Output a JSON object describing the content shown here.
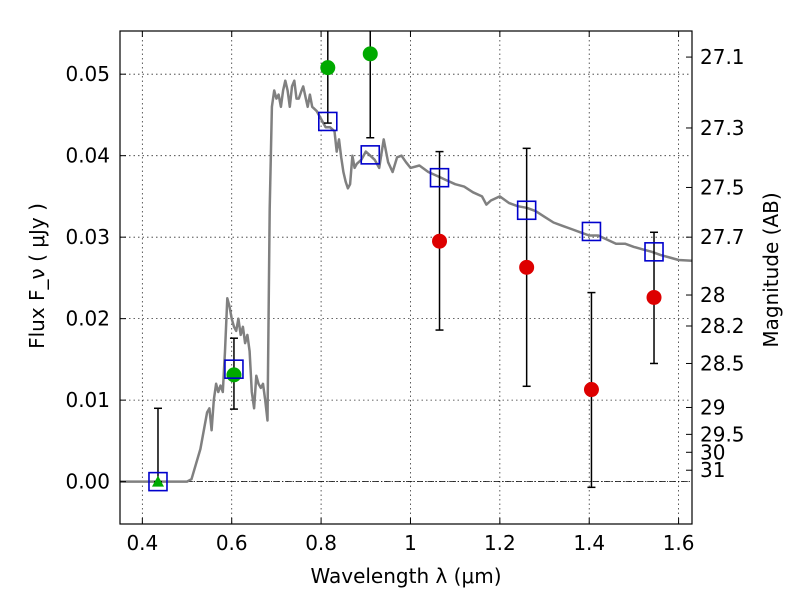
{
  "chart_data": {
    "type": "scatter",
    "xlabel": "Wavelength  λ (μm)",
    "ylabel_left": "Flux  F_ν  ( μJy )",
    "ylabel_right": "Magnitude (AB)",
    "xlim": [
      0.35,
      1.63
    ],
    "ylim": [
      -0.0052,
      0.0553
    ],
    "x_ticks": [
      0.4,
      0.6,
      0.8,
      1.0,
      1.2,
      1.4,
      1.6
    ],
    "x_tick_labels": [
      "0.4",
      "0.6",
      "0.8",
      "1",
      "1.2",
      "1.4",
      "1.6"
    ],
    "y_ticks": [
      0.0,
      0.01,
      0.02,
      0.03,
      0.04,
      0.05
    ],
    "y_tick_labels": [
      "0.00",
      "0.01",
      "0.02",
      "0.03",
      "0.04",
      "0.05"
    ],
    "right_ticks": [
      {
        "label": "27.1",
        "flux": 0.0521
      },
      {
        "label": "27.3",
        "flux": 0.0434
      },
      {
        "label": "27.5",
        "flux": 0.0361
      },
      {
        "label": "27.7",
        "flux": 0.03
      },
      {
        "label": "28",
        "flux": 0.0229
      },
      {
        "label": "28.2",
        "flux": 0.0191
      },
      {
        "label": "28.5",
        "flux": 0.0145
      },
      {
        "label": "29",
        "flux": 0.0091
      },
      {
        "label": "29.5",
        "flux": 0.0058
      },
      {
        "label": "30",
        "flux": 0.0036
      },
      {
        "label": "31",
        "flux": 0.0014
      }
    ],
    "grid": true,
    "model_sed": {
      "color": "#808080",
      "points": [
        [
          0.35,
          0.0
        ],
        [
          0.5,
          0.0
        ],
        [
          0.51,
          0.0003
        ],
        [
          0.53,
          0.004
        ],
        [
          0.545,
          0.0085
        ],
        [
          0.55,
          0.009
        ],
        [
          0.555,
          0.0063
        ],
        [
          0.56,
          0.01
        ],
        [
          0.565,
          0.012
        ],
        [
          0.57,
          0.011
        ],
        [
          0.575,
          0.0118
        ],
        [
          0.58,
          0.011
        ],
        [
          0.585,
          0.016
        ],
        [
          0.59,
          0.0225
        ],
        [
          0.595,
          0.0215
        ],
        [
          0.6,
          0.02
        ],
        [
          0.605,
          0.019
        ],
        [
          0.61,
          0.0185
        ],
        [
          0.615,
          0.02
        ],
        [
          0.62,
          0.018
        ],
        [
          0.625,
          0.019
        ],
        [
          0.63,
          0.017
        ],
        [
          0.635,
          0.018
        ],
        [
          0.64,
          0.016
        ],
        [
          0.645,
          0.011
        ],
        [
          0.65,
          0.009
        ],
        [
          0.655,
          0.013
        ],
        [
          0.66,
          0.012
        ],
        [
          0.665,
          0.0115
        ],
        [
          0.67,
          0.012
        ],
        [
          0.675,
          0.01
        ],
        [
          0.68,
          0.0075
        ],
        [
          0.685,
          0.0335
        ],
        [
          0.69,
          0.046
        ],
        [
          0.695,
          0.048
        ],
        [
          0.7,
          0.047
        ],
        [
          0.705,
          0.0475
        ],
        [
          0.71,
          0.046
        ],
        [
          0.715,
          0.048
        ],
        [
          0.72,
          0.0492
        ],
        [
          0.725,
          0.048
        ],
        [
          0.73,
          0.046
        ],
        [
          0.735,
          0.0485
        ],
        [
          0.74,
          0.0492
        ],
        [
          0.745,
          0.047
        ],
        [
          0.75,
          0.047
        ],
        [
          0.755,
          0.0478
        ],
        [
          0.76,
          0.0485
        ],
        [
          0.765,
          0.0472
        ],
        [
          0.77,
          0.046
        ],
        [
          0.775,
          0.0475
        ],
        [
          0.78,
          0.046
        ],
        [
          0.79,
          0.0455
        ],
        [
          0.8,
          0.0445
        ],
        [
          0.81,
          0.0435
        ],
        [
          0.82,
          0.0435
        ],
        [
          0.83,
          0.043
        ],
        [
          0.835,
          0.0405
        ],
        [
          0.84,
          0.042
        ],
        [
          0.845,
          0.0398
        ],
        [
          0.85,
          0.038
        ],
        [
          0.855,
          0.0368
        ],
        [
          0.86,
          0.036
        ],
        [
          0.865,
          0.0365
        ],
        [
          0.87,
          0.04
        ],
        [
          0.875,
          0.0385
        ],
        [
          0.88,
          0.039
        ],
        [
          0.89,
          0.0395
        ],
        [
          0.9,
          0.0405
        ],
        [
          0.91,
          0.04
        ],
        [
          0.92,
          0.0395
        ],
        [
          0.93,
          0.0385
        ],
        [
          0.94,
          0.042
        ],
        [
          0.95,
          0.0392
        ],
        [
          0.96,
          0.038
        ],
        [
          0.97,
          0.0398
        ],
        [
          0.98,
          0.04
        ],
        [
          0.99,
          0.0392
        ],
        [
          1.0,
          0.0385
        ],
        [
          1.02,
          0.0388
        ],
        [
          1.04,
          0.038
        ],
        [
          1.06,
          0.0375
        ],
        [
          1.08,
          0.037
        ],
        [
          1.1,
          0.0365
        ],
        [
          1.12,
          0.0362
        ],
        [
          1.14,
          0.0355
        ],
        [
          1.16,
          0.035
        ],
        [
          1.17,
          0.034
        ],
        [
          1.18,
          0.0345
        ],
        [
          1.2,
          0.035
        ],
        [
          1.22,
          0.0342
        ],
        [
          1.24,
          0.0338
        ],
        [
          1.26,
          0.0336
        ],
        [
          1.28,
          0.0332
        ],
        [
          1.3,
          0.0325
        ],
        [
          1.32,
          0.0318
        ],
        [
          1.34,
          0.0314
        ],
        [
          1.36,
          0.031
        ],
        [
          1.38,
          0.0306
        ],
        [
          1.4,
          0.0302
        ],
        [
          1.42,
          0.0302
        ],
        [
          1.44,
          0.0297
        ],
        [
          1.46,
          0.0292
        ],
        [
          1.48,
          0.0292
        ],
        [
          1.5,
          0.0288
        ],
        [
          1.52,
          0.0285
        ],
        [
          1.54,
          0.0282
        ],
        [
          1.56,
          0.0278
        ],
        [
          1.58,
          0.0275
        ],
        [
          1.6,
          0.0272
        ],
        [
          1.63,
          0.0271
        ]
      ]
    },
    "model_photometry": {
      "marker": "open-square",
      "color": "#0000cc",
      "points": [
        [
          0.435,
          0.0
        ],
        [
          0.605,
          0.0138
        ],
        [
          0.815,
          0.0442
        ],
        [
          0.91,
          0.0401
        ],
        [
          1.065,
          0.0373
        ],
        [
          1.26,
          0.0333
        ],
        [
          1.405,
          0.0307
        ],
        [
          1.545,
          0.0282
        ]
      ]
    },
    "detections": {
      "marker": "filled-circle",
      "color": "#00aa00",
      "points": [
        {
          "x": 0.605,
          "y": 0.0131,
          "err_low": 0.0089,
          "err_high": 0.0176
        },
        {
          "x": 0.815,
          "y": 0.0508,
          "err_low": 0.044,
          "err_high": 0.0553
        },
        {
          "x": 0.91,
          "y": 0.0525,
          "err_low": 0.0422,
          "err_high": 0.0553
        }
      ]
    },
    "upper_limit_points": {
      "marker": "filled-triangle",
      "color": "#00aa00",
      "points": [
        {
          "x": 0.435,
          "y": 0.0,
          "err_low": 0.0,
          "err_high": 0.009
        }
      ]
    },
    "nir_points": {
      "marker": "filled-circle",
      "color": "#dd0000",
      "points": [
        {
          "x": 1.065,
          "y": 0.0295,
          "err_low": 0.0186,
          "err_high": 0.0405
        },
        {
          "x": 1.26,
          "y": 0.0263,
          "err_low": 0.0117,
          "err_high": 0.0409
        },
        {
          "x": 1.405,
          "y": 0.0113,
          "err_low": -0.0007,
          "err_high": 0.0232
        },
        {
          "x": 1.545,
          "y": 0.0226,
          "err_low": 0.0145,
          "err_high": 0.0306
        }
      ]
    }
  }
}
